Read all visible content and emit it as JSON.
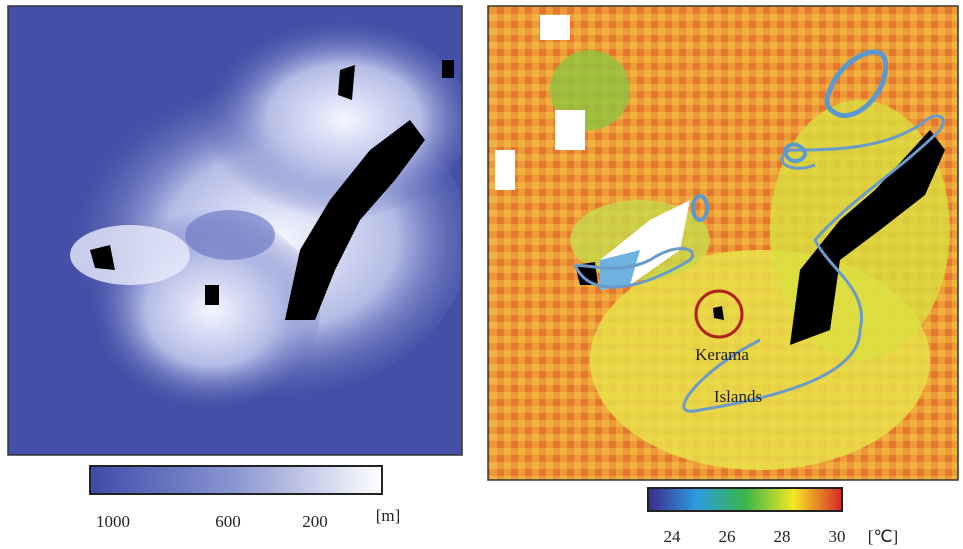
{
  "panels": [
    {
      "colorbar": {
        "ticks": [
          "1000",
          "600",
          "200"
        ],
        "unit": "[m]"
      }
    },
    {
      "colorbar": {
        "ticks": [
          "24",
          "26",
          "28",
          "30"
        ],
        "unit": "[℃]"
      },
      "annotation": [
        "Kerama",
        "Islands"
      ]
    }
  ]
}
